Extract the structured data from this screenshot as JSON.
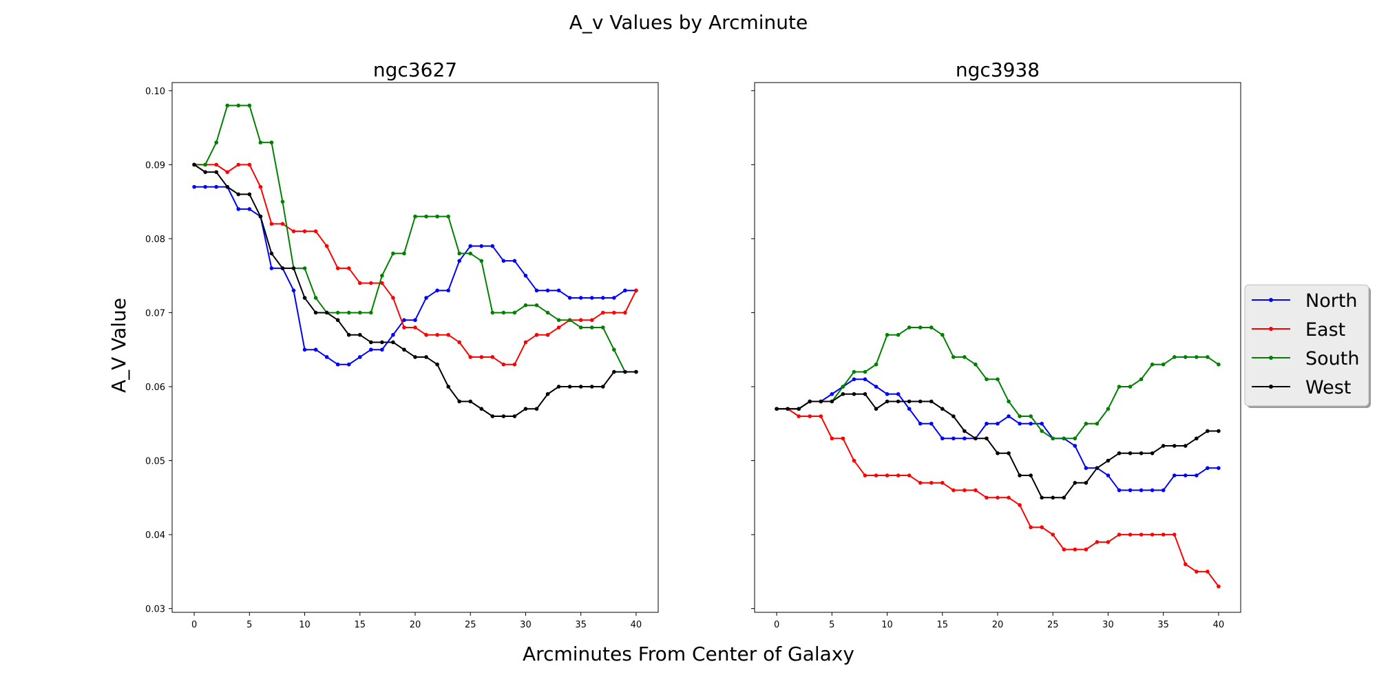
{
  "figure_title": "A_v Values by Arcminute",
  "xlabel": "Arcminutes From Center of Galaxy",
  "ylabel": "A_V Value",
  "legend": {
    "placement": "right-outside",
    "entries": [
      {
        "label": "North",
        "color": "#0000ff"
      },
      {
        "label": "East",
        "color": "#ff0000"
      },
      {
        "label": "South",
        "color": "#008000"
      },
      {
        "label": "West",
        "color": "#000000"
      }
    ]
  },
  "chart_data": [
    {
      "type": "line",
      "title": "ngc3627",
      "xlim": [
        -2,
        42
      ],
      "ylim": [
        0.0295,
        0.1011
      ],
      "xticks": [
        0,
        5,
        10,
        15,
        20,
        25,
        30,
        35,
        40
      ],
      "yticks": [
        "0.03",
        "0.04",
        "0.05",
        "0.06",
        "0.07",
        "0.08",
        "0.09",
        "0.10"
      ],
      "grid": false,
      "x": [
        0,
        1,
        2,
        3,
        4,
        5,
        6,
        7,
        8,
        9,
        10,
        11,
        12,
        13,
        14,
        15,
        16,
        17,
        18,
        19,
        20,
        21,
        22,
        23,
        24,
        25,
        26,
        27,
        28,
        29,
        30,
        31,
        32,
        33,
        34,
        35,
        36,
        37,
        38,
        39,
        40
      ],
      "series": [
        {
          "name": "North",
          "color": "#0000ff",
          "values": [
            0.087,
            0.087,
            0.087,
            0.087,
            0.084,
            0.084,
            0.083,
            0.076,
            0.076,
            0.073,
            0.065,
            0.065,
            0.064,
            0.063,
            0.063,
            0.064,
            0.065,
            0.065,
            0.067,
            0.069,
            0.069,
            0.072,
            0.073,
            0.073,
            0.077,
            0.079,
            0.079,
            0.079,
            0.077,
            0.077,
            0.075,
            0.073,
            0.073,
            0.073,
            0.072,
            0.072,
            0.072,
            0.072,
            0.072,
            0.073,
            0.073
          ]
        },
        {
          "name": "East",
          "color": "#ff0000",
          "values": [
            0.09,
            0.09,
            0.09,
            0.089,
            0.09,
            0.09,
            0.087,
            0.082,
            0.082,
            0.081,
            0.081,
            0.081,
            0.079,
            0.076,
            0.076,
            0.074,
            0.074,
            0.074,
            0.072,
            0.068,
            0.068,
            0.067,
            0.067,
            0.067,
            0.066,
            0.064,
            0.064,
            0.064,
            0.063,
            0.063,
            0.066,
            0.067,
            0.067,
            0.068,
            0.069,
            0.069,
            0.069,
            0.07,
            0.07,
            0.07,
            0.073
          ]
        },
        {
          "name": "South",
          "color": "#008000",
          "values": [
            0.09,
            0.09,
            0.093,
            0.098,
            0.098,
            0.098,
            0.093,
            0.093,
            0.085,
            0.076,
            0.076,
            0.072,
            0.07,
            0.07,
            0.07,
            0.07,
            0.07,
            0.075,
            0.078,
            0.078,
            0.083,
            0.083,
            0.083,
            0.083,
            0.078,
            0.078,
            0.077,
            0.07,
            0.07,
            0.07,
            0.071,
            0.071,
            0.07,
            0.069,
            0.069,
            0.068,
            0.068,
            0.068,
            0.065,
            0.062,
            0.062
          ]
        },
        {
          "name": "West",
          "color": "#000000",
          "values": [
            0.09,
            0.089,
            0.089,
            0.087,
            0.086,
            0.086,
            0.083,
            0.078,
            0.076,
            0.076,
            0.072,
            0.07,
            0.07,
            0.069,
            0.067,
            0.067,
            0.066,
            0.066,
            0.066,
            0.065,
            0.064,
            0.064,
            0.063,
            0.06,
            0.058,
            0.058,
            0.057,
            0.056,
            0.056,
            0.056,
            0.057,
            0.057,
            0.059,
            0.06,
            0.06,
            0.06,
            0.06,
            0.06,
            0.062,
            0.062,
            0.062
          ]
        }
      ]
    },
    {
      "type": "line",
      "title": "ngc3938",
      "xlim": [
        -2,
        42
      ],
      "ylim": [
        0.0295,
        0.1011
      ],
      "xticks": [
        0,
        5,
        10,
        15,
        20,
        25,
        30,
        35,
        40
      ],
      "yticks": [],
      "grid": false,
      "x": [
        0,
        1,
        2,
        3,
        4,
        5,
        6,
        7,
        8,
        9,
        10,
        11,
        12,
        13,
        14,
        15,
        16,
        17,
        18,
        19,
        20,
        21,
        22,
        23,
        24,
        25,
        26,
        27,
        28,
        29,
        30,
        31,
        32,
        33,
        34,
        35,
        36,
        37,
        38,
        39,
        40
      ],
      "series": [
        {
          "name": "North",
          "color": "#0000ff",
          "values": [
            0.057,
            0.057,
            0.057,
            0.058,
            0.058,
            0.059,
            0.06,
            0.061,
            0.061,
            0.06,
            0.059,
            0.059,
            0.057,
            0.055,
            0.055,
            0.053,
            0.053,
            0.053,
            0.053,
            0.055,
            0.055,
            0.056,
            0.055,
            0.055,
            0.055,
            0.053,
            0.053,
            0.052,
            0.049,
            0.049,
            0.048,
            0.046,
            0.046,
            0.046,
            0.046,
            0.046,
            0.048,
            0.048,
            0.048,
            0.049,
            0.049
          ]
        },
        {
          "name": "East",
          "color": "#ff0000",
          "values": [
            0.057,
            0.057,
            0.056,
            0.056,
            0.056,
            0.053,
            0.053,
            0.05,
            0.048,
            0.048,
            0.048,
            0.048,
            0.048,
            0.047,
            0.047,
            0.047,
            0.046,
            0.046,
            0.046,
            0.045,
            0.045,
            0.045,
            0.044,
            0.041,
            0.041,
            0.04,
            0.038,
            0.038,
            0.038,
            0.039,
            0.039,
            0.04,
            0.04,
            0.04,
            0.04,
            0.04,
            0.04,
            0.036,
            0.035,
            0.035,
            0.033
          ]
        },
        {
          "name": "South",
          "color": "#008000",
          "values": [
            0.057,
            0.057,
            0.057,
            0.058,
            0.058,
            0.058,
            0.06,
            0.062,
            0.062,
            0.063,
            0.067,
            0.067,
            0.068,
            0.068,
            0.068,
            0.067,
            0.064,
            0.064,
            0.063,
            0.061,
            0.061,
            0.058,
            0.056,
            0.056,
            0.054,
            0.053,
            0.053,
            0.053,
            0.055,
            0.055,
            0.057,
            0.06,
            0.06,
            0.061,
            0.063,
            0.063,
            0.064,
            0.064,
            0.064,
            0.064,
            0.063
          ]
        },
        {
          "name": "West",
          "color": "#000000",
          "values": [
            0.057,
            0.057,
            0.057,
            0.058,
            0.058,
            0.058,
            0.059,
            0.059,
            0.059,
            0.057,
            0.058,
            0.058,
            0.058,
            0.058,
            0.058,
            0.057,
            0.056,
            0.054,
            0.053,
            0.053,
            0.051,
            0.051,
            0.048,
            0.048,
            0.045,
            0.045,
            0.045,
            0.047,
            0.047,
            0.049,
            0.05,
            0.051,
            0.051,
            0.051,
            0.051,
            0.052,
            0.052,
            0.052,
            0.053,
            0.054,
            0.054
          ]
        }
      ]
    }
  ]
}
